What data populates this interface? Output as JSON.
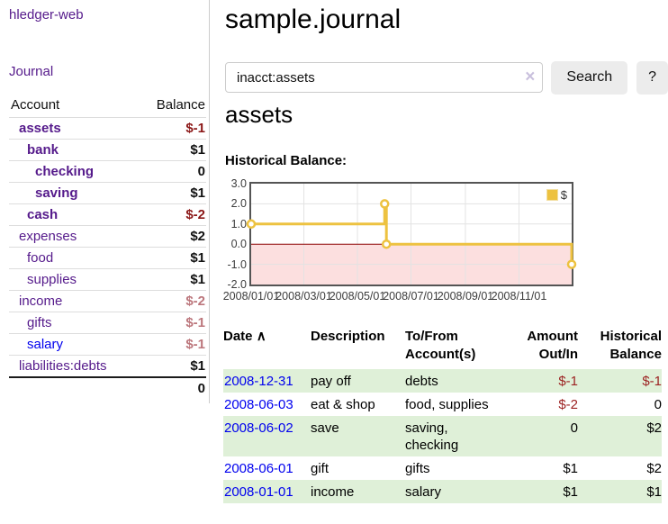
{
  "sidebar": {
    "app_title": "hledger-web",
    "journal_label": "Journal",
    "accounts_table": {
      "col_account": "Account",
      "col_balance": "Balance",
      "rows": [
        {
          "name": "assets",
          "depth": 1,
          "balance": "$-1",
          "bold": true,
          "negative": "strong",
          "link_style": "visited"
        },
        {
          "name": "bank",
          "depth": 2,
          "balance": "$1",
          "bold": true,
          "negative": "none",
          "link_style": "visited"
        },
        {
          "name": "checking",
          "depth": 3,
          "balance": "0",
          "bold": true,
          "negative": "none",
          "link_style": "visited"
        },
        {
          "name": "saving",
          "depth": 3,
          "balance": "$1",
          "bold": true,
          "negative": "none",
          "link_style": "visited"
        },
        {
          "name": "cash",
          "depth": 2,
          "balance": "$-2",
          "bold": true,
          "negative": "strong",
          "link_style": "visited"
        },
        {
          "name": "expenses",
          "depth": 1,
          "balance": "$2",
          "bold": false,
          "negative": "none",
          "link_style": "visited"
        },
        {
          "name": "food",
          "depth": 2,
          "balance": "$1",
          "bold": false,
          "negative": "none",
          "link_style": "visited"
        },
        {
          "name": "supplies",
          "depth": 2,
          "balance": "$1",
          "bold": false,
          "negative": "none",
          "link_style": "visited"
        },
        {
          "name": "income",
          "depth": 1,
          "balance": "$-2",
          "bold": false,
          "negative": "soft",
          "link_style": "visited"
        },
        {
          "name": "gifts",
          "depth": 2,
          "balance": "$-1",
          "bold": false,
          "negative": "soft",
          "link_style": "visited"
        },
        {
          "name": "salary",
          "depth": 2,
          "balance": "$-1",
          "bold": false,
          "negative": "soft",
          "link_style": "unvisited"
        },
        {
          "name": "liabilities:debts",
          "depth": 1,
          "balance": "$1",
          "bold": false,
          "negative": "none",
          "link_style": "visited"
        }
      ],
      "total": "0"
    }
  },
  "main": {
    "title": "sample.journal",
    "search": {
      "query": "inacct:assets",
      "clear_icon": "×",
      "search_button_label": "Search",
      "help_button_label": "?"
    },
    "account_heading": "assets",
    "chart_heading": "Historical Balance:"
  },
  "chart_data": {
    "type": "line",
    "step": true,
    "title": "Historical Balance:",
    "ylim": [
      -2,
      3
    ],
    "y_ticks": [
      {
        "value": 3,
        "label": "3.0"
      },
      {
        "value": 2,
        "label": "2.0"
      },
      {
        "value": 1,
        "label": "1.0"
      },
      {
        "value": 0,
        "label": "0.0"
      },
      {
        "value": -1,
        "label": "-1.0"
      },
      {
        "value": -2,
        "label": "-2.0"
      }
    ],
    "x_domain_days": [
      0,
      365
    ],
    "x_ticks": [
      {
        "day": 0,
        "label": "2008/01/01"
      },
      {
        "day": 60,
        "label": "2008/03/01"
      },
      {
        "day": 121,
        "label": "2008/05/01"
      },
      {
        "day": 182,
        "label": "2008/07/01"
      },
      {
        "day": 244,
        "label": "2008/09/01"
      },
      {
        "day": 305,
        "label": "2008/11/01"
      }
    ],
    "series": [
      {
        "name": "$",
        "color": "#edc240",
        "points": [
          {
            "date": "2008-01-01",
            "day": 0,
            "value": 1
          },
          {
            "date": "2008-06-01",
            "day": 152,
            "value": 2
          },
          {
            "date": "2008-06-03",
            "day": 154,
            "value": 0
          },
          {
            "date": "2008-12-31",
            "day": 365,
            "value": -1
          }
        ]
      }
    ],
    "legend": {
      "label": "$",
      "swatch_color": "#edc240",
      "position": "top-right"
    },
    "grid": true,
    "negative_region_color": "#fcdfdf",
    "zero_line_color": "#8b0000",
    "grid_color": "#e3e3e3",
    "border_color": "#545454"
  },
  "register_table": {
    "headers": {
      "date": {
        "line1": "Date",
        "line2": ""
      },
      "description": {
        "line1": "Description",
        "line2": ""
      },
      "to_from": {
        "line1": "To/From",
        "line2": "Account(s)"
      },
      "amount": {
        "line1": "Amount",
        "line2": "Out/In"
      },
      "balance": {
        "line1": "Historical",
        "line2": "Balance"
      }
    },
    "sort_asc_icon": "∧",
    "rows": [
      {
        "date": "2008-12-31",
        "description": "pay off",
        "to_from": "debts",
        "amount": "$-1",
        "amount_negative": true,
        "balance": "$-1",
        "balance_negative": true,
        "stripe": true
      },
      {
        "date": "2008-06-03",
        "description": "eat & shop",
        "to_from": "food, supplies",
        "amount": "$-2",
        "amount_negative": true,
        "balance": "0",
        "balance_negative": false,
        "stripe": false
      },
      {
        "date": "2008-06-02",
        "description": "save",
        "to_from": "saving,\nchecking",
        "amount": "0",
        "amount_negative": false,
        "balance": "$2",
        "balance_negative": false,
        "stripe": true
      },
      {
        "date": "2008-06-01",
        "description": "gift",
        "to_from": "gifts",
        "amount": "$1",
        "amount_negative": false,
        "balance": "$2",
        "balance_negative": false,
        "stripe": false
      },
      {
        "date": "2008-01-01",
        "description": "income",
        "to_from": "salary",
        "amount": "$1",
        "amount_negative": false,
        "balance": "$1",
        "balance_negative": false,
        "stripe": true
      }
    ]
  },
  "colors": {
    "link_visited_purple": "#551a8b",
    "link_blue": "#0000ee",
    "negative_strong": "#8b1717",
    "negative_soft": "#bc767c",
    "negative_table": "#9c2222",
    "row_stripe_green": "#dff0d8",
    "chart_line_gold": "#edc240",
    "chart_negative_fill": "#fcdfdf",
    "chart_zero_line": "#8b0000"
  }
}
